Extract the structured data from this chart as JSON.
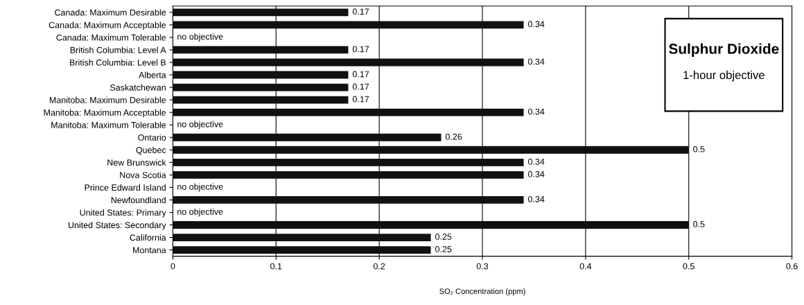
{
  "chart_data": {
    "type": "bar",
    "orientation": "horizontal",
    "title": "Sulphur Dioxide",
    "subtitle": "1-hour objective",
    "xlabel": "SO₂ Concentration (ppm)",
    "categories": [
      "Canada: Maximum Desirable",
      "Canada: Maximum Acceptable",
      "Canada: Maximum Tolerable",
      "British Columbia: Level A",
      "British Columbia: Level B",
      "Alberta",
      "Saskatchewan",
      "Manitoba: Maximum Desirable",
      "Manitoba: Maximum Acceptable",
      "Manitoba: Maximum Tolerable",
      "Ontario",
      "Quebec",
      "New Brunswick",
      "Nova Scotia",
      "Prince Edward Island",
      "Newfoundland",
      "United States: Primary",
      "United States: Secondary",
      "California",
      "Montana"
    ],
    "values": [
      0.17,
      0.34,
      null,
      0.17,
      0.34,
      0.17,
      0.17,
      0.17,
      0.34,
      null,
      0.26,
      0.5,
      0.34,
      0.34,
      null,
      0.34,
      null,
      0.5,
      0.25,
      0.25
    ],
    "value_labels": [
      "0.17",
      "0.34",
      "no objective",
      "0.17",
      "0.34",
      "0.17",
      "0.17",
      "0.17",
      "0.34",
      "no objective",
      "0.26",
      "0.5",
      "0.34",
      "0.34",
      "no objective",
      "0.34",
      "no objective",
      "0.5",
      "0.25",
      "0.25"
    ],
    "color": "#111111",
    "xlim": [
      0,
      0.6
    ],
    "xticks": [
      0,
      0.1,
      0.2,
      0.3,
      0.4,
      0.5,
      0.6
    ],
    "grid": "x",
    "legend": false
  }
}
